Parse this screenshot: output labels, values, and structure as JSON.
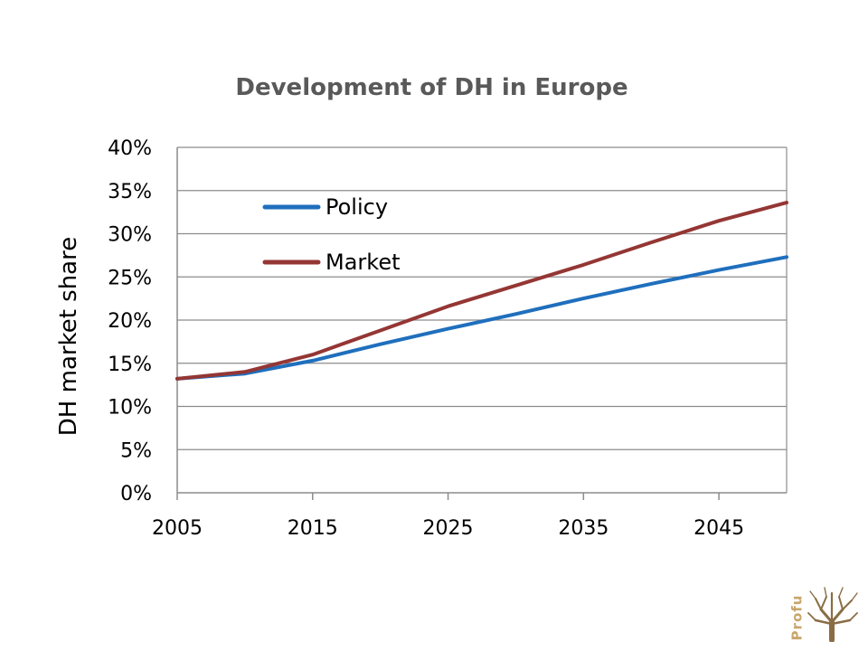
{
  "chart_data": {
    "type": "line",
    "title": "Development of DH in Europe",
    "xlabel": "",
    "ylabel": "DH market share",
    "x_ticks": [
      "2005",
      "2015",
      "2025",
      "2035",
      "2045"
    ],
    "y_ticks": [
      "0%",
      "5%",
      "10%",
      "15%",
      "20%",
      "25%",
      "30%",
      "35%",
      "40%"
    ],
    "xlim": [
      2005,
      2050
    ],
    "ylim": [
      0,
      40
    ],
    "grid": true,
    "legend_position": "top-left",
    "x": [
      2005,
      2010,
      2015,
      2020,
      2025,
      2030,
      2035,
      2040,
      2045,
      2050
    ],
    "series": [
      {
        "name": "Policy",
        "color": "#1f6fbd",
        "values": [
          13.2,
          13.8,
          15.3,
          17.2,
          19.0,
          20.7,
          22.5,
          24.2,
          25.8,
          27.3
        ]
      },
      {
        "name": "Market",
        "color": "#943634",
        "values": [
          13.2,
          14.0,
          16.0,
          18.8,
          21.6,
          24.0,
          26.4,
          29.0,
          31.5,
          33.6
        ]
      }
    ]
  },
  "logo": {
    "text": "Profu",
    "color": "#c8a66a",
    "tree_color": "#8a6d45"
  }
}
